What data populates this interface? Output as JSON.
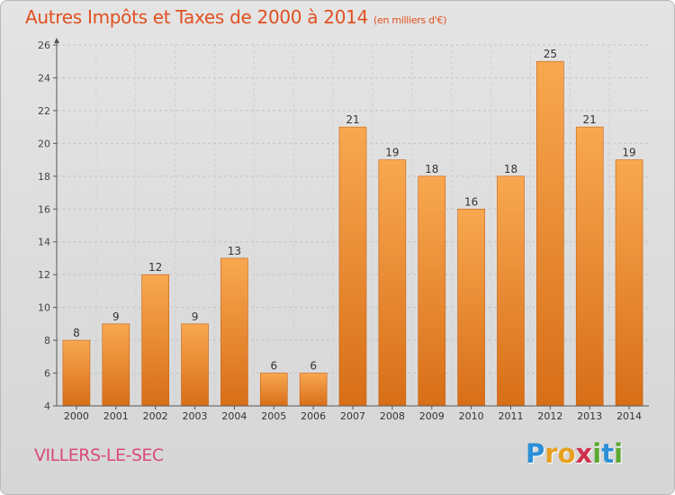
{
  "header": {
    "title": "Autres Impôts et Taxes de 2000 à 2014",
    "subtitle": "(en milliers d'€)"
  },
  "footer": {
    "commune": "VILLERS-LE-SEC",
    "logo_letters": [
      {
        "char": "P",
        "color": "#2b8fd6"
      },
      {
        "char": "r",
        "color": "#e8a020"
      },
      {
        "char": "o",
        "color": "#e8a020"
      },
      {
        "char": "x",
        "color": "#d03050"
      },
      {
        "char": "i",
        "color": "#5aa830"
      },
      {
        "char": "t",
        "color": "#2b8fd6"
      },
      {
        "char": "i",
        "color": "#5aa830"
      }
    ]
  },
  "chart_data": {
    "type": "bar",
    "title": "Autres Impôts et Taxes de 2000 à 2014",
    "subtitle": "(en milliers d'€)",
    "categories": [
      "2000",
      "2001",
      "2002",
      "2003",
      "2004",
      "2005",
      "2006",
      "2007",
      "2008",
      "2009",
      "2010",
      "2011",
      "2012",
      "2013",
      "2014"
    ],
    "values": [
      8,
      9,
      12,
      9,
      13,
      6,
      6,
      21,
      19,
      18,
      16,
      18,
      25,
      21,
      19
    ],
    "ylim": [
      4,
      26
    ],
    "yticks": [
      4,
      6,
      8,
      10,
      12,
      14,
      16,
      18,
      20,
      22,
      24,
      26
    ],
    "grid": "horizontal-dashed",
    "colors": {
      "bar_top": "#f8a850",
      "bar_bottom": "#d86e18",
      "bar_edge": "#c86010"
    }
  }
}
